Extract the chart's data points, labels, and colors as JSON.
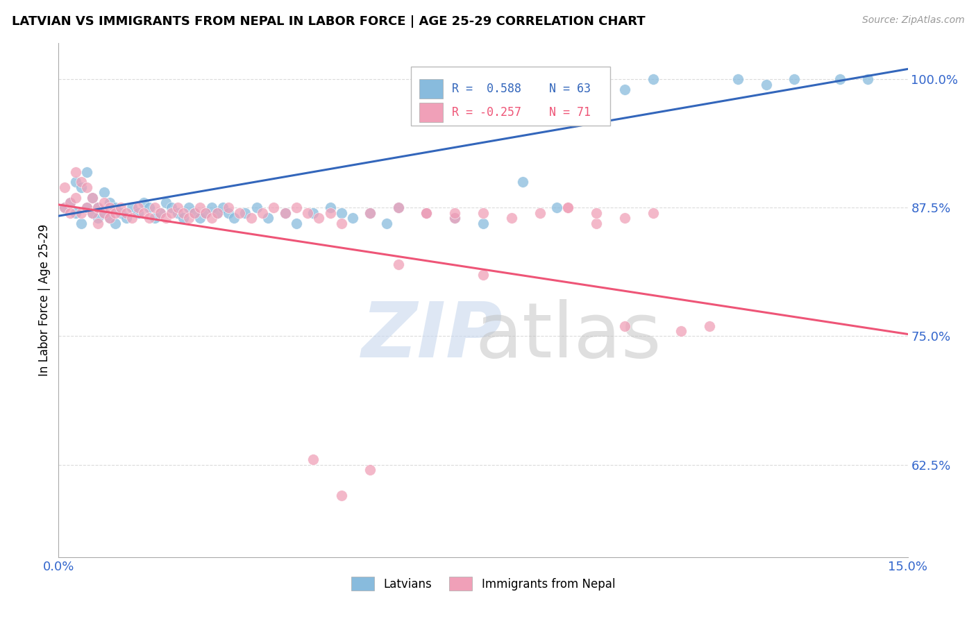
{
  "title": "LATVIAN VS IMMIGRANTS FROM NEPAL IN LABOR FORCE | AGE 25-29 CORRELATION CHART",
  "source": "Source: ZipAtlas.com",
  "ylabel": "In Labor Force | Age 25-29",
  "x_min": 0.0,
  "x_max": 0.15,
  "y_min": 0.535,
  "y_max": 1.035,
  "color_blue": "#88bbdd",
  "color_pink": "#f0a0b8",
  "color_blue_line": "#3366bb",
  "color_pink_line": "#ee5577",
  "color_axis_labels": "#3366cc",
  "color_grid": "#cccccc",
  "blue_line_y0": 0.867,
  "blue_line_y1": 1.01,
  "pink_line_y0": 0.878,
  "pink_line_y1": 0.752,
  "blue_x": [
    0.001,
    0.002,
    0.003,
    0.003,
    0.004,
    0.004,
    0.005,
    0.005,
    0.006,
    0.006,
    0.007,
    0.007,
    0.008,
    0.008,
    0.009,
    0.009,
    0.01,
    0.01,
    0.011,
    0.012,
    0.013,
    0.014,
    0.015,
    0.016,
    0.017,
    0.018,
    0.019,
    0.02,
    0.021,
    0.022,
    0.023,
    0.024,
    0.025,
    0.026,
    0.027,
    0.028,
    0.029,
    0.03,
    0.031,
    0.033,
    0.035,
    0.037,
    0.04,
    0.042,
    0.045,
    0.048,
    0.05,
    0.052,
    0.055,
    0.058,
    0.06,
    0.065,
    0.07,
    0.075,
    0.082,
    0.088,
    0.1,
    0.105,
    0.12,
    0.125,
    0.13,
    0.138,
    0.143
  ],
  "blue_y": [
    0.875,
    0.88,
    0.87,
    0.9,
    0.86,
    0.895,
    0.875,
    0.91,
    0.87,
    0.885,
    0.875,
    0.865,
    0.87,
    0.89,
    0.865,
    0.88,
    0.875,
    0.86,
    0.87,
    0.865,
    0.875,
    0.87,
    0.88,
    0.875,
    0.865,
    0.87,
    0.88,
    0.875,
    0.87,
    0.865,
    0.875,
    0.87,
    0.865,
    0.87,
    0.875,
    0.87,
    0.875,
    0.87,
    0.865,
    0.87,
    0.875,
    0.865,
    0.87,
    0.86,
    0.87,
    0.875,
    0.87,
    0.865,
    0.87,
    0.86,
    0.875,
    0.87,
    0.865,
    0.86,
    0.9,
    0.875,
    0.99,
    1.0,
    1.0,
    0.995,
    1.0,
    1.0,
    1.0
  ],
  "pink_x": [
    0.001,
    0.001,
    0.002,
    0.002,
    0.003,
    0.003,
    0.004,
    0.004,
    0.005,
    0.005,
    0.006,
    0.006,
    0.007,
    0.007,
    0.008,
    0.008,
    0.009,
    0.009,
    0.01,
    0.011,
    0.012,
    0.013,
    0.014,
    0.015,
    0.016,
    0.017,
    0.018,
    0.019,
    0.02,
    0.021,
    0.022,
    0.023,
    0.024,
    0.025,
    0.026,
    0.027,
    0.028,
    0.03,
    0.032,
    0.034,
    0.036,
    0.038,
    0.04,
    0.042,
    0.044,
    0.046,
    0.048,
    0.05,
    0.055,
    0.06,
    0.065,
    0.07,
    0.075,
    0.08,
    0.085,
    0.09,
    0.095,
    0.1,
    0.045,
    0.05,
    0.055,
    0.06,
    0.065,
    0.07,
    0.075,
    0.09,
    0.095,
    0.1,
    0.105,
    0.11,
    0.115
  ],
  "pink_y": [
    0.875,
    0.895,
    0.88,
    0.87,
    0.885,
    0.91,
    0.87,
    0.9,
    0.875,
    0.895,
    0.87,
    0.885,
    0.875,
    0.86,
    0.87,
    0.88,
    0.875,
    0.865,
    0.87,
    0.875,
    0.87,
    0.865,
    0.875,
    0.87,
    0.865,
    0.875,
    0.87,
    0.865,
    0.87,
    0.875,
    0.87,
    0.865,
    0.87,
    0.875,
    0.87,
    0.865,
    0.87,
    0.875,
    0.87,
    0.865,
    0.87,
    0.875,
    0.87,
    0.875,
    0.87,
    0.865,
    0.87,
    0.86,
    0.87,
    0.875,
    0.87,
    0.865,
    0.87,
    0.865,
    0.87,
    0.875,
    0.86,
    0.865,
    0.63,
    0.595,
    0.62,
    0.82,
    0.87,
    0.87,
    0.81,
    0.875,
    0.87,
    0.76,
    0.87,
    0.755,
    0.76
  ]
}
